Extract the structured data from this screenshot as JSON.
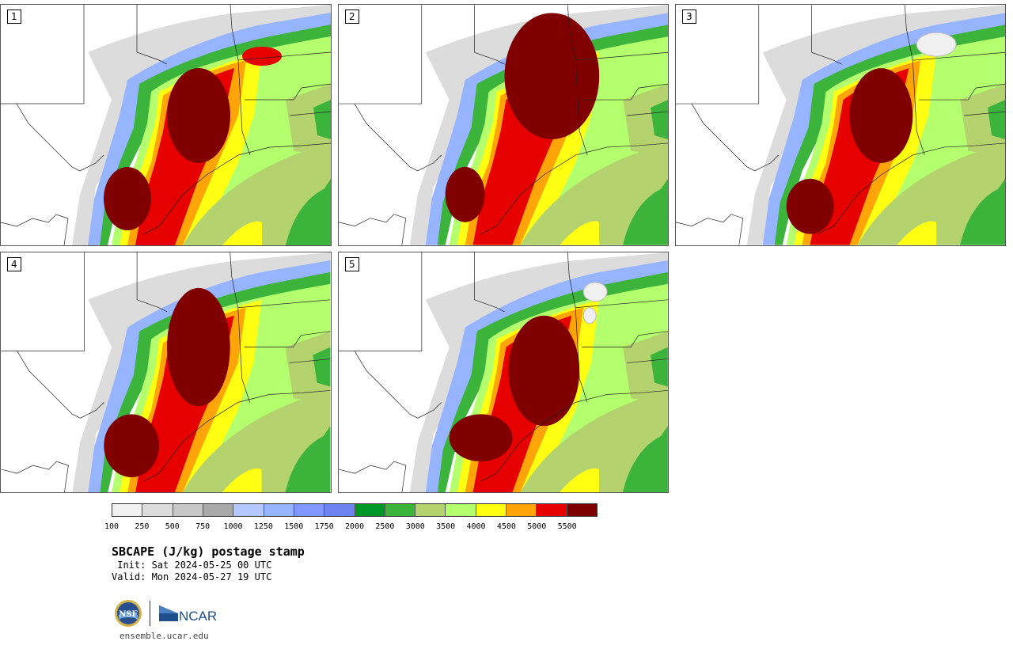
{
  "panels": [
    {
      "label": "1"
    },
    {
      "label": "2"
    },
    {
      "label": "3"
    },
    {
      "label": "4"
    },
    {
      "label": "5"
    }
  ],
  "colorbar": {
    "colors": [
      "#f0f0f0",
      "#dcdcdc",
      "#c8c8c8",
      "#a9a9a9",
      "#b4c8ff",
      "#96b4ff",
      "#8296ff",
      "#6e82f0",
      "#009628",
      "#3cb43c",
      "#b4d26e",
      "#b4ff6e",
      "#ffff14",
      "#ffa50a",
      "#e60000",
      "#800000"
    ],
    "ticks": [
      "100",
      "250",
      "500",
      "750",
      "1000",
      "1250",
      "1500",
      "1750",
      "2000",
      "2500",
      "3000",
      "3500",
      "4000",
      "4500",
      "5000",
      "5500"
    ]
  },
  "title": "SBCAPE (J/kg) postage stamp",
  "init": " Init: Sat 2024-05-25 00 UTC",
  "valid": "Valid: Mon 2024-05-27 19 UTC",
  "logos": {
    "nsf": "NSF",
    "ncar": "NCAR"
  },
  "site": "ensemble.ucar.edu"
}
